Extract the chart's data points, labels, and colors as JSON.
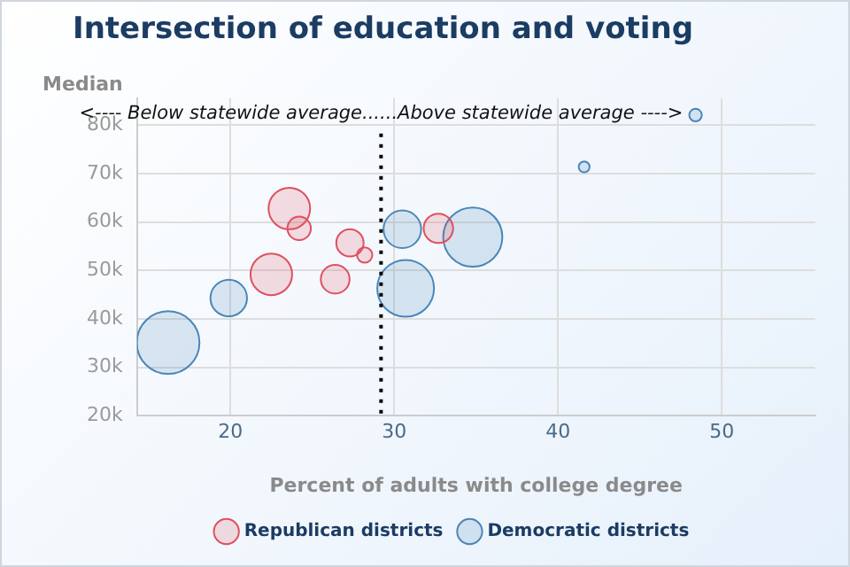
{
  "chart_data": {
    "type": "bubble",
    "title": "Intersection of education and voting",
    "xlabel": "Percent of adults with college degree",
    "ylabel": "Median",
    "xlim": [
      14.3,
      55.7
    ],
    "xticks": [
      20,
      30,
      40,
      50
    ],
    "ylim": [
      20000,
      85600
    ],
    "yticks": [
      {
        "value": 20000,
        "label": "20k"
      },
      {
        "value": 30000,
        "label": "30k"
      },
      {
        "value": 40000,
        "label": "40k"
      },
      {
        "value": 50000,
        "label": "50k"
      },
      {
        "value": 60000,
        "label": "60k"
      },
      {
        "value": 70000,
        "label": "70k"
      },
      {
        "value": 80000,
        "label": "80k"
      }
    ],
    "grid": true,
    "legend": "bottom",
    "ref_lines": [
      {
        "axis": "x",
        "value": 29.2,
        "label": "<---- Below statewide average......Above statewide average ---->",
        "line_style": "dotted",
        "color": "#000000"
      }
    ],
    "series": [
      {
        "name": "Republican districts",
        "color": "#e0505f",
        "x": [
          23.6,
          24.2,
          22.5,
          27.3,
          28.2,
          26.4,
          32.7
        ],
        "values": [
          62800,
          58700,
          49200,
          55700,
          53200,
          48200,
          58700
        ],
        "sizes": [
          0.44,
          0.14,
          0.44,
          0.19,
          0.06,
          0.21,
          0.22
        ]
      },
      {
        "name": "Democratic districts",
        "color": "#4a86b8",
        "x": [
          16.2,
          19.9,
          30.5,
          30.7,
          34.8,
          41.6,
          48.4
        ],
        "values": [
          35100,
          44300,
          58500,
          46300,
          56900,
          71400,
          82100
        ],
        "sizes": [
          1,
          0.34,
          0.36,
          0.82,
          0.89,
          0.03,
          0.04
        ]
      }
    ]
  }
}
